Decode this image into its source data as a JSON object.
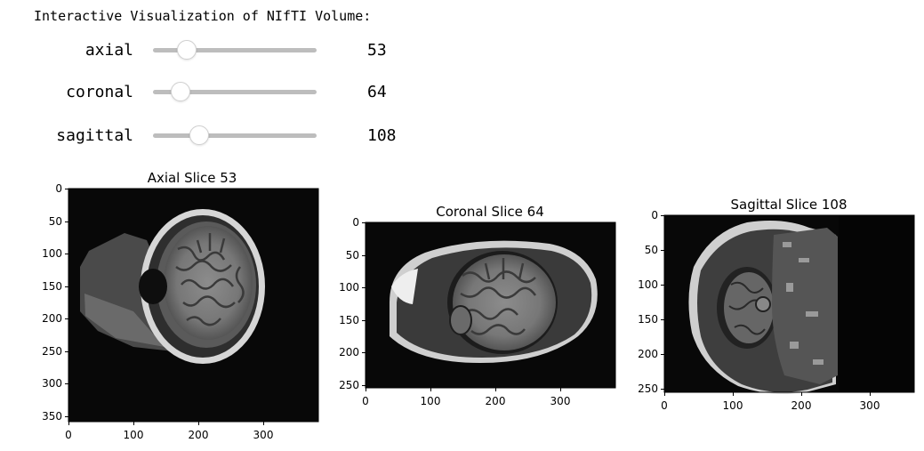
{
  "title": "Interactive Visualization of NIfTI Volume:",
  "sliders": [
    {
      "label": "axial",
      "value": 53,
      "min": 0,
      "max": 255
    },
    {
      "label": "coronal",
      "value": 64,
      "min": 0,
      "max": 383
    },
    {
      "label": "sagittal",
      "value": 108,
      "min": 0,
      "max": 383
    }
  ],
  "plots": [
    {
      "title": "Axial Slice 53",
      "xticks": [
        "0",
        "100",
        "200",
        "300"
      ],
      "yticks": [
        "0",
        "50",
        "100",
        "150",
        "200",
        "250",
        "300",
        "350"
      ]
    },
    {
      "title": "Coronal Slice 64",
      "xticks": [
        "0",
        "100",
        "200",
        "300"
      ],
      "yticks": [
        "0",
        "50",
        "100",
        "150",
        "200",
        "250"
      ]
    },
    {
      "title": "Sagittal Slice 108",
      "xticks": [
        "0",
        "100",
        "200",
        "300"
      ],
      "yticks": [
        "0",
        "50",
        "100",
        "150",
        "200",
        "250"
      ]
    }
  ]
}
